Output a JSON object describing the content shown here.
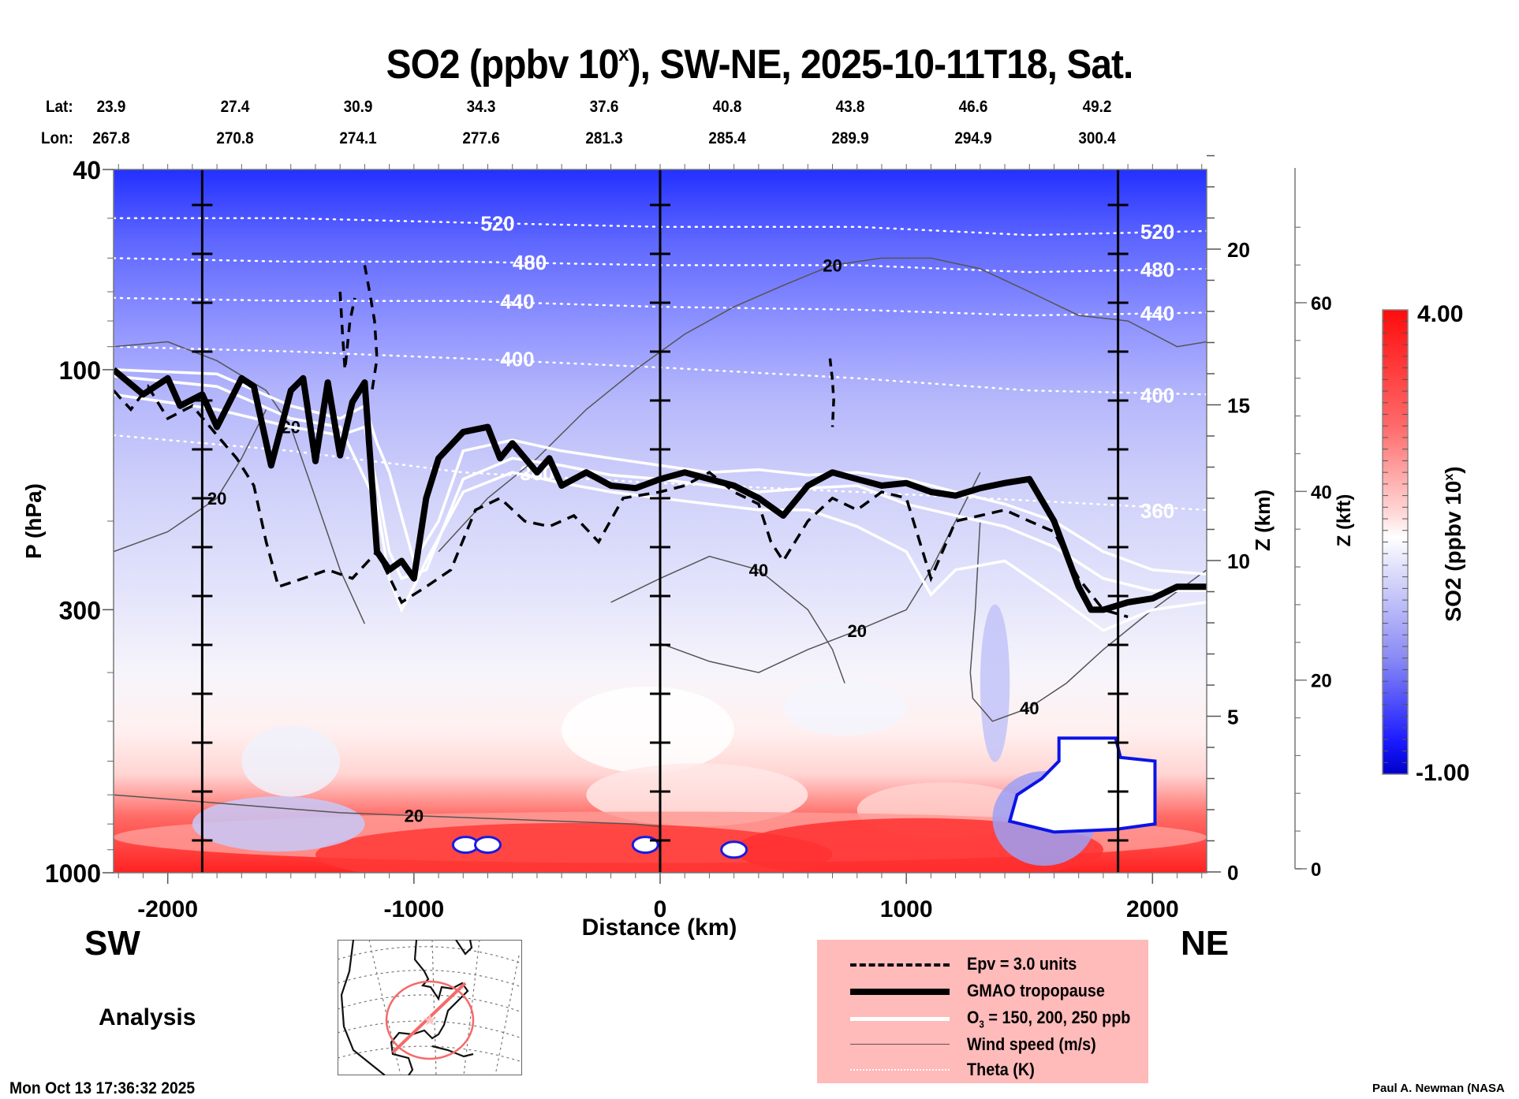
{
  "header": {
    "title_main": "SO2 (ppbv 10",
    "title_sup": "x",
    "title_rest": "), SW-NE, 2025-10-11T18, Sat.",
    "lat_label": "Lat:",
    "lon_label": "Lon:",
    "lat": [
      "23.9",
      "27.4",
      "30.9",
      "34.3",
      "37.6",
      "40.8",
      "43.8",
      "46.6",
      "49.2"
    ],
    "lon": [
      "267.8",
      "270.8",
      "274.1",
      "277.6",
      "281.3",
      "285.4",
      "289.9",
      "294.9",
      "300.4"
    ]
  },
  "labels": {
    "sw": "SW",
    "ne": "NE",
    "analysis": "Analysis",
    "timestamp": "Mon Oct 13 17:36:32 2025",
    "credit": "Paul A. Newman (NASA"
  },
  "legend": {
    "items": [
      {
        "label": "Epv = 3.0 units",
        "style": "dashed-black"
      },
      {
        "label": "GMAO tropopause",
        "style": "thick-black"
      },
      {
        "label": "O3 = 150, 200, 250 ppb",
        "style": "white"
      },
      {
        "label": "Wind speed (m/s)",
        "style": "thin-gray"
      },
      {
        "label": "Theta (K)",
        "style": "dotted-white"
      }
    ]
  },
  "colorbar": {
    "label": "SO2 (ppbv 10^x)",
    "label_main": "SO2 (ppbv 10",
    "label_sup": "x",
    "label_end": ")",
    "max_label": "4.00",
    "min_label": "-1.00",
    "min": -1.0,
    "max": 4.0,
    "colors": {
      "high": "#ff0000",
      "mid": "#ffffff",
      "low": "#0000dd"
    }
  },
  "chart_data": {
    "type": "heatmap",
    "title": "SO2 (ppbv 10^x), SW-NE, 2025-10-11T18, Sat.",
    "xlabel": "Distance (km)",
    "ylabel": "P (hPa)",
    "y2label": "Z (km)",
    "y3label": "Z (kft)",
    "xlim": [
      -2220,
      2220
    ],
    "ylim": [
      1000,
      40
    ],
    "yscale": "log",
    "x_ticks": [
      -2000,
      -1000,
      0,
      1000,
      2000
    ],
    "x_tick_labels": [
      "-2000",
      "-1000",
      "0",
      "1000",
      "2000"
    ],
    "y_ticks": [
      40,
      100,
      300,
      1000
    ],
    "y_tick_labels": [
      "40",
      "100",
      "300",
      "1000"
    ],
    "z_km_ticks": [
      0,
      5,
      10,
      15,
      20
    ],
    "z_km_range": [
      0,
      23.3
    ],
    "z_kft_ticks": [
      0,
      20,
      40,
      60
    ],
    "vertical_lines_km": [
      -1860,
      0,
      1860
    ],
    "theta_isolines": [
      {
        "value": 520,
        "label_x": -660,
        "p": [
          50,
          50,
          51,
          52,
          52,
          54,
          53
        ]
      },
      {
        "value": 480,
        "label_x": -530,
        "p": [
          60,
          61,
          61,
          62,
          62,
          64,
          63
        ]
      },
      {
        "value": 440,
        "label_x": -580,
        "p": [
          72,
          73,
          73,
          75,
          76,
          78,
          77
        ]
      },
      {
        "value": 400,
        "label_x": -580,
        "p": [
          90,
          92,
          95,
          99,
          104,
          110,
          112
        ]
      },
      {
        "value": 360,
        "label_x": -500,
        "p": [
          135,
          145,
          160,
          168,
          175,
          182,
          190
        ]
      }
    ],
    "theta_x": [
      -2220,
      -1500,
      -800,
      0,
      800,
      1500,
      2220
    ],
    "theta_label_values": [
      "520",
      "480",
      "440",
      "400",
      "360"
    ],
    "tropopause": {
      "x": [
        -2220,
        -2100,
        -2000,
        -1950,
        -1860,
        -1800,
        -1700,
        -1650,
        -1580,
        -1500,
        -1450,
        -1400,
        -1350,
        -1300,
        -1250,
        -1200,
        -1150,
        -1100,
        -1050,
        -1000,
        -950,
        -900,
        -800,
        -700,
        -650,
        -600,
        -500,
        -450,
        -400,
        -300,
        -200,
        -100,
        0,
        100,
        200,
        300,
        400,
        500,
        600,
        700,
        800,
        900,
        1000,
        1100,
        1200,
        1300,
        1400,
        1500,
        1600,
        1700,
        1750,
        1800,
        1900,
        2000,
        2100,
        2220
      ],
      "p": [
        100,
        112,
        104,
        118,
        112,
        130,
        104,
        108,
        155,
        110,
        104,
        152,
        106,
        148,
        116,
        106,
        230,
        250,
        240,
        260,
        180,
        150,
        133,
        130,
        150,
        140,
        160,
        150,
        170,
        160,
        170,
        172,
        165,
        160,
        165,
        170,
        180,
        195,
        170,
        160,
        165,
        170,
        168,
        175,
        178,
        172,
        168,
        165,
        200,
        270,
        300,
        300,
        290,
        285,
        270,
        270
      ]
    },
    "epv_3pvu": {
      "x": [
        -2220,
        -2150,
        -2080,
        -2000,
        -1900,
        -1800,
        -1720,
        -1650,
        -1600,
        -1550,
        -1450,
        -1350,
        -1250,
        -1150,
        -1050,
        -950,
        -850,
        -750,
        -650,
        -550,
        -450,
        -350,
        -250,
        -150,
        0,
        100,
        200,
        300,
        400,
        450,
        500,
        600,
        700,
        800,
        900,
        1000,
        1100,
        1200,
        1300,
        1400,
        1500,
        1600,
        1700,
        1800,
        1900
      ],
      "p": [
        110,
        120,
        108,
        125,
        118,
        135,
        150,
        170,
        220,
        270,
        260,
        250,
        260,
        230,
        290,
        270,
        250,
        190,
        180,
        200,
        205,
        195,
        220,
        180,
        175,
        170,
        160,
        175,
        185,
        220,
        240,
        200,
        180,
        190,
        175,
        180,
        260,
        200,
        195,
        190,
        200,
        210,
        260,
        300,
        310
      ]
    },
    "o3_contours": [
      {
        "ppb": 150,
        "x": [
          -2220,
          -1800,
          -1500,
          -1300,
          -1200,
          -1150,
          -1100,
          -1000,
          -900,
          -800,
          -600,
          -400,
          -200,
          0,
          200,
          400,
          600,
          800,
          1000,
          1200,
          1400,
          1600,
          1800,
          2000,
          2220
        ],
        "p": [
          100,
          102,
          118,
          125,
          118,
          140,
          160,
          240,
          200,
          145,
          138,
          145,
          150,
          155,
          160,
          158,
          162,
          160,
          165,
          175,
          185,
          200,
          230,
          250,
          255
        ]
      },
      {
        "ppb": 200,
        "x": [
          -2220,
          -1800,
          -1500,
          -1300,
          -1200,
          -1150,
          -1100,
          -1050,
          -950,
          -800,
          -600,
          -400,
          -200,
          0,
          200,
          400,
          600,
          800,
          1000,
          1200,
          1400,
          1600,
          1800,
          2000,
          2220
        ],
        "p": [
          112,
          120,
          130,
          135,
          130,
          170,
          230,
          260,
          250,
          165,
          150,
          155,
          162,
          165,
          170,
          175,
          172,
          170,
          185,
          195,
          205,
          225,
          260,
          275,
          275
        ]
      },
      {
        "ppb": 250,
        "x": [
          -2220,
          -1800,
          -1500,
          -1300,
          -1150,
          -1100,
          -1050,
          -1000,
          -950,
          -800,
          -600,
          -400,
          -200,
          0,
          200,
          400,
          600,
          800,
          1000,
          1100,
          1200,
          1400,
          1600,
          1800,
          2000,
          2220
        ],
        "p": [
          103,
          108,
          125,
          130,
          185,
          260,
          300,
          270,
          240,
          175,
          160,
          168,
          175,
          180,
          185,
          190,
          190,
          205,
          230,
          280,
          250,
          240,
          280,
          330,
          300,
          290
        ]
      }
    ],
    "wind_speed_contours": [
      {
        "value": 20,
        "x": [
          -2220,
          -2000,
          -1800,
          -1600,
          -1500,
          -1400,
          -1300,
          -1200
        ],
        "p": [
          90,
          88,
          96,
          110,
          130,
          180,
          250,
          320
        ]
      },
      {
        "value": 20,
        "x": [
          -900,
          -700,
          -500,
          -300,
          -100,
          100,
          300,
          500,
          700,
          900,
          1100,
          1300,
          1500,
          1700,
          1900,
          2100,
          2220
        ],
        "p": [
          230,
          180,
          150,
          120,
          100,
          85,
          75,
          68,
          62,
          60,
          60,
          63,
          70,
          78,
          80,
          90,
          88
        ]
      },
      {
        "value": 20,
        "x": [
          -2220,
          -2000,
          -1800,
          -1700,
          -1600
        ],
        "p": [
          230,
          210,
          180,
          150,
          120
        ]
      },
      {
        "value": 40,
        "x": [
          -200,
          0,
          200,
          400,
          600,
          700,
          750
        ],
        "p": [
          290,
          260,
          235,
          250,
          300,
          360,
          420
        ]
      },
      {
        "value": 20,
        "x": [
          0,
          200,
          400,
          600,
          800,
          1000,
          1100,
          1200,
          1300
        ],
        "p": [
          350,
          380,
          400,
          360,
          330,
          300,
          250,
          200,
          160
        ]
      },
      {
        "value": 40,
        "x": [
          1300,
          1280,
          1260,
          1270,
          1350,
          1500,
          1650,
          1800,
          2000,
          2220
        ],
        "p": [
          200,
          300,
          400,
          450,
          500,
          470,
          420,
          360,
          300,
          250
        ]
      },
      {
        "value": 20,
        "x": [
          -2220,
          -1900,
          -1600,
          -1300,
          -1000,
          -700,
          -400,
          -100,
          0
        ],
        "p": [
          700,
          720,
          740,
          760,
          770,
          780,
          790,
          800,
          810
        ]
      }
    ],
    "wind_label_values": [
      "20",
      "20",
      "20",
      "40",
      "20",
      "40",
      "20",
      "20"
    ],
    "so2_field_note": "SO2 is low/blue (~-1 to 1) in stratosphere, near zero/white in mid-troposphere, high/red (~3-4) in boundary layer below ~850 hPa"
  }
}
